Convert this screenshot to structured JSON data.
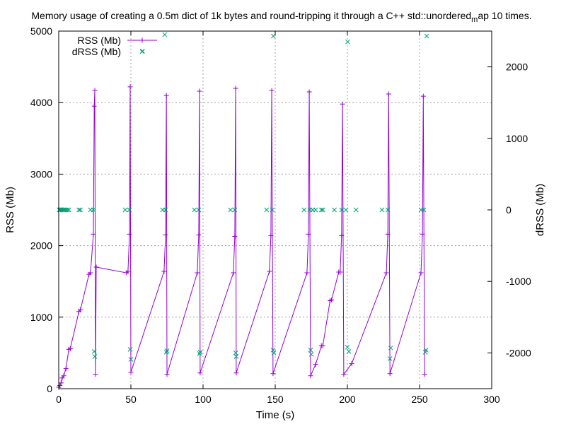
{
  "chart_data": {
    "type": "line",
    "title": "Memory usage of creating a 0.5m dict of 1k bytes and round-tripping it through a C++ std::unordered",
    "title_subscript": "m",
    "title_tail": "ap 10 times.",
    "xlabel": "Time (s)",
    "ylabel": "RSS (Mb)",
    "y2label": "dRSS (Mb)",
    "xlim": [
      0,
      300
    ],
    "ylim": [
      0,
      5000
    ],
    "y2lim": [
      -2500,
      2500
    ],
    "xticks": [
      0,
      50,
      100,
      150,
      200,
      250,
      300
    ],
    "yticks": [
      0,
      1000,
      2000,
      3000,
      4000,
      5000
    ],
    "y2ticks": [
      -2000,
      -1000,
      0,
      1000,
      2000
    ],
    "grid": true,
    "legend": "top-left",
    "colors": {
      "rss": "#9400d3",
      "drss": "#009e73"
    },
    "series": [
      {
        "name": "RSS (Mb)",
        "axis": "y",
        "marker": "plus",
        "points": [
          [
            0,
            20
          ],
          [
            0.8,
            45
          ],
          [
            1.6,
            80
          ],
          [
            2.4,
            150
          ],
          [
            3.5,
            180
          ],
          [
            5,
            280
          ],
          [
            7,
            550
          ],
          [
            8,
            560
          ],
          [
            14,
            1080
          ],
          [
            15,
            1100
          ],
          [
            21,
            1600
          ],
          [
            22,
            1620
          ],
          [
            24,
            2160
          ],
          [
            24.6,
            3950
          ],
          [
            25,
            4170
          ],
          [
            25.5,
            200
          ],
          [
            26,
            1700
          ],
          [
            47,
            1620
          ],
          [
            48,
            1640
          ],
          [
            49,
            2160
          ],
          [
            49.5,
            4220
          ],
          [
            50,
            230
          ],
          [
            73,
            1640
          ],
          [
            74,
            2150
          ],
          [
            74.6,
            4100
          ],
          [
            75,
            200
          ],
          [
            96,
            1620
          ],
          [
            97,
            2150
          ],
          [
            97.6,
            4160
          ],
          [
            98,
            220
          ],
          [
            121,
            1620
          ],
          [
            122,
            2130
          ],
          [
            122.6,
            4200
          ],
          [
            123,
            220
          ],
          [
            146,
            1640
          ],
          [
            147,
            2140
          ],
          [
            147.6,
            4170
          ],
          [
            148.5,
            210
          ],
          [
            172,
            1620
          ],
          [
            173,
            2160
          ],
          [
            173.6,
            4150
          ],
          [
            174.5,
            180
          ],
          [
            178,
            340
          ],
          [
            182,
            600
          ],
          [
            183,
            600
          ],
          [
            188,
            1230
          ],
          [
            189,
            1240
          ],
          [
            194,
            1630
          ],
          [
            195,
            1630
          ],
          [
            196,
            2140
          ],
          [
            196.6,
            3980
          ],
          [
            197.5,
            200
          ],
          [
            203,
            350
          ],
          [
            227,
            1620
          ],
          [
            228,
            2160
          ],
          [
            228.6,
            4120
          ],
          [
            229.5,
            210
          ],
          [
            251,
            1620
          ],
          [
            252,
            2160
          ],
          [
            252.6,
            4090
          ],
          [
            253.5,
            200
          ]
        ]
      },
      {
        "name": "dRSS (Mb)",
        "axis": "y2",
        "marker": "cross",
        "points": [
          [
            0.3,
            0
          ],
          [
            1,
            0
          ],
          [
            1.6,
            5
          ],
          [
            2.4,
            0
          ],
          [
            3.2,
            0
          ],
          [
            4,
            0
          ],
          [
            5,
            0
          ],
          [
            6,
            0
          ],
          [
            7,
            0
          ],
          [
            14,
            0
          ],
          [
            15,
            0
          ],
          [
            22,
            0
          ],
          [
            24,
            0
          ],
          [
            24.6,
            -1980
          ],
          [
            25,
            -2050
          ],
          [
            46,
            0
          ],
          [
            49,
            0
          ],
          [
            49.5,
            -1950
          ],
          [
            50,
            -2090
          ],
          [
            58,
            2220
          ],
          [
            72,
            0
          ],
          [
            74,
            0
          ],
          [
            74.6,
            -1990
          ],
          [
            75,
            -1970
          ],
          [
            73.5,
            2450
          ],
          [
            94,
            0
          ],
          [
            97,
            0
          ],
          [
            97.6,
            -2010
          ],
          [
            98,
            -1990
          ],
          [
            119,
            0
          ],
          [
            122,
            0
          ],
          [
            122.6,
            -2000
          ],
          [
            123,
            -2050
          ],
          [
            144,
            0
          ],
          [
            148,
            0
          ],
          [
            148.5,
            -1960
          ],
          [
            149,
            -2000
          ],
          [
            148.7,
            2430
          ],
          [
            170,
            0
          ],
          [
            174,
            0
          ],
          [
            176,
            0
          ],
          [
            178,
            0
          ],
          [
            182,
            0
          ],
          [
            183,
            0
          ],
          [
            174.5,
            -1960
          ],
          [
            175,
            -2020
          ],
          [
            191,
            0
          ],
          [
            196,
            0
          ],
          [
            199,
            0
          ],
          [
            200,
            -1920
          ],
          [
            201,
            -1980
          ],
          [
            200.2,
            2350
          ],
          [
            206,
            0
          ],
          [
            224,
            0
          ],
          [
            228,
            0
          ],
          [
            229.5,
            -2080
          ],
          [
            230,
            -1930
          ],
          [
            251,
            0
          ],
          [
            253,
            0
          ],
          [
            254,
            -1990
          ],
          [
            254.5,
            -1960
          ],
          [
            255,
            2430
          ]
        ]
      }
    ]
  }
}
